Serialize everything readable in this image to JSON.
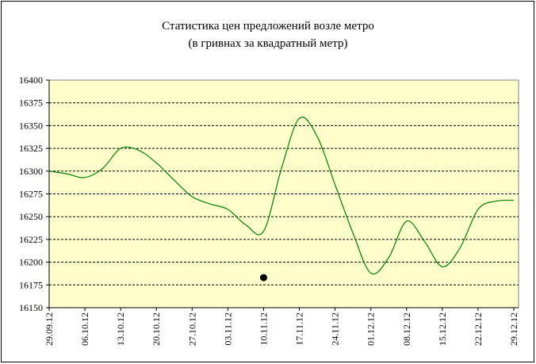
{
  "chart_data": {
    "type": "line",
    "title_lines": [
      "Статистика цен предложений возле метро",
      "(в гривнах за квадратный метр)"
    ],
    "xlabel": "",
    "ylabel": "",
    "ylim": [
      16150,
      16400
    ],
    "yticks": [
      16150,
      16175,
      16200,
      16225,
      16250,
      16275,
      16300,
      16325,
      16350,
      16375,
      16400
    ],
    "ytick_labels": [
      "16150",
      "16175",
      "16200",
      "16225",
      "16250",
      "16275",
      "16300",
      "16325",
      "16350",
      "16375",
      "16400"
    ],
    "x_tick_labels": [
      "29.09.12",
      "06.10.12",
      "13.10.12",
      "20.10.12",
      "27.10.12",
      "03.11.12",
      "10.11.12",
      "17.11.12",
      "24.11.12",
      "01.12.12",
      "08.12.12",
      "15.12.12",
      "22.12.12",
      "29.12.12"
    ],
    "grid": true,
    "legend": "none",
    "series": [
      {
        "color": "#008000",
        "points": [
          [
            0,
            16300
          ],
          [
            0.5,
            16297
          ],
          [
            1,
            16293
          ],
          [
            1.5,
            16303
          ],
          [
            2,
            16325
          ],
          [
            2.5,
            16323
          ],
          [
            3,
            16309
          ],
          [
            3.5,
            16290
          ],
          [
            4,
            16272
          ],
          [
            4.5,
            16264
          ],
          [
            5,
            16258
          ],
          [
            5.5,
            16241
          ],
          [
            6,
            16234
          ],
          [
            6.5,
            16303
          ],
          [
            7,
            16358
          ],
          [
            7.5,
            16338
          ],
          [
            8,
            16285
          ],
          [
            8.5,
            16232
          ],
          [
            9,
            16188
          ],
          [
            9.5,
            16205
          ],
          [
            10,
            16245
          ],
          [
            10.5,
            16223
          ],
          [
            11,
            16195
          ],
          [
            11.5,
            16216
          ],
          [
            12,
            16258
          ],
          [
            12.5,
            16267
          ],
          [
            13,
            16268
          ]
        ]
      },
      {
        "color": "#000000",
        "marker_only": true,
        "points": [
          [
            6,
            16183
          ]
        ]
      }
    ],
    "colors": {
      "plot_bg": "#ffffcc",
      "line": "#008000",
      "grid": "#000000"
    }
  }
}
